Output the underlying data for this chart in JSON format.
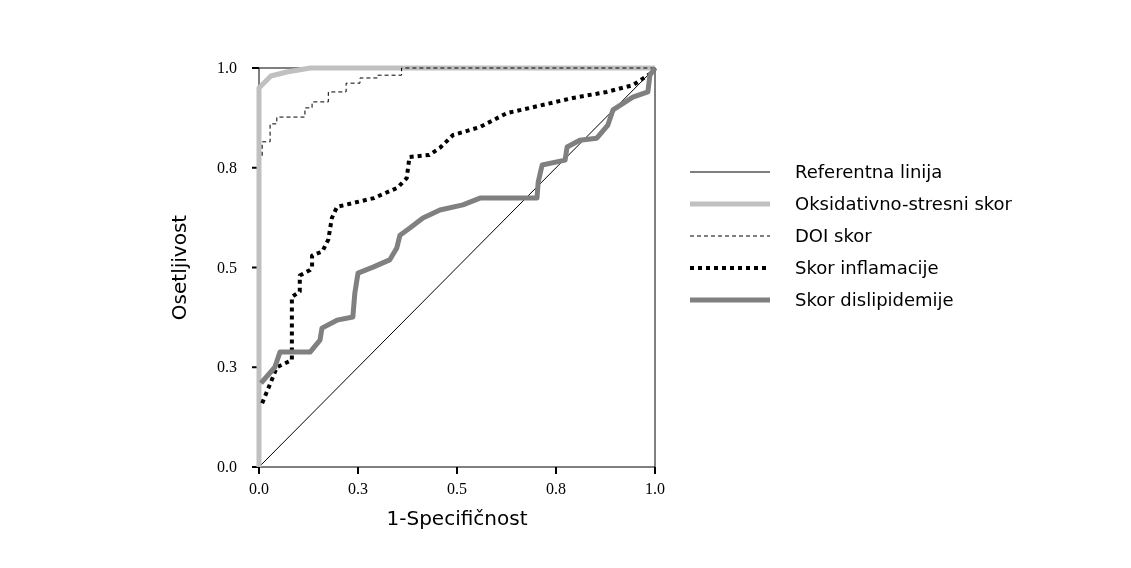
{
  "chart_data": {
    "type": "line",
    "xlabel": "1-Specifičnost",
    "ylabel": "Osetljivost",
    "xlim": [
      0,
      1
    ],
    "ylim": [
      0,
      1
    ],
    "xticks": [
      {
        "value": 0,
        "label": "0.0"
      },
      {
        "value": 0.25,
        "label": "0.3"
      },
      {
        "value": 0.5,
        "label": "0.5"
      },
      {
        "value": 0.75,
        "label": "0.8"
      },
      {
        "value": 1,
        "label": "1.0"
      }
    ],
    "yticks": [
      {
        "value": 0,
        "label": "0.0"
      },
      {
        "value": 0.25,
        "label": "0.3"
      },
      {
        "value": 0.5,
        "label": "0.5"
      },
      {
        "value": 0.75,
        "label": "0.8"
      },
      {
        "value": 1,
        "label": "1.0"
      }
    ],
    "grid": false,
    "legend": "right",
    "series": [
      {
        "name": "Referentna linija",
        "color": "#000000",
        "line_style": "solid",
        "x": [
          0,
          1
        ],
        "values": [
          0,
          1
        ]
      },
      {
        "name": "Oksidativno-stresni skor",
        "color": "#c0c0c0",
        "line_style": "solid",
        "x": [
          0,
          0,
          0.01,
          0.03,
          0.07,
          0.13,
          1
        ],
        "values": [
          0,
          0.95,
          0.96,
          0.98,
          0.99,
          1,
          1
        ]
      },
      {
        "name": "DOI skor",
        "color": "#000000",
        "line_style": "dashed",
        "x": [
          0.008,
          0.008,
          0.028,
          0.028,
          0.045,
          0.045,
          0.116,
          0.116,
          0.134,
          0.134,
          0.175,
          0.175,
          0.22,
          0.22,
          0.255,
          0.255,
          0.3,
          0.3,
          0.36,
          0.36,
          1
        ],
        "values": [
          0.78,
          0.815,
          0.815,
          0.86,
          0.86,
          0.877,
          0.877,
          0.9,
          0.9,
          0.915,
          0.915,
          0.94,
          0.94,
          0.962,
          0.962,
          0.975,
          0.975,
          0.982,
          0.982,
          1,
          1
        ]
      },
      {
        "name": "Skor inflamacije",
        "color": "#000000",
        "line_style": "dotted",
        "x": [
          0.008,
          0.035,
          0.045,
          0.083,
          0.083,
          0.103,
          0.103,
          0.129,
          0.134,
          0.134,
          0.16,
          0.175,
          0.184,
          0.197,
          0.29,
          0.35,
          0.373,
          0.38,
          0.43,
          0.457,
          0.49,
          0.558,
          0.626,
          0.684,
          0.793,
          0.878,
          0.944,
          0.995,
          1
        ],
        "values": [
          0.16,
          0.225,
          0.25,
          0.268,
          0.426,
          0.44,
          0.48,
          0.494,
          0.5,
          0.53,
          0.54,
          0.57,
          0.624,
          0.652,
          0.674,
          0.7,
          0.724,
          0.777,
          0.782,
          0.8,
          0.832,
          0.852,
          0.887,
          0.9,
          0.925,
          0.94,
          0.957,
          0.99,
          1
        ]
      },
      {
        "name": "Skor dislipidemije",
        "color": "#808080",
        "line_style": "solid",
        "x": [
          0.005,
          0.04,
          0.053,
          0.129,
          0.154,
          0.159,
          0.197,
          0.237,
          0.242,
          0.25,
          0.288,
          0.33,
          0.348,
          0.356,
          0.381,
          0.414,
          0.457,
          0.515,
          0.558,
          0.702,
          0.705,
          0.715,
          0.773,
          0.778,
          0.81,
          0.853,
          0.881,
          0.894,
          0.944,
          0.982,
          0.987,
          1
        ],
        "values": [
          0.21,
          0.25,
          0.288,
          0.288,
          0.318,
          0.348,
          0.368,
          0.376,
          0.436,
          0.486,
          0.501,
          0.519,
          0.549,
          0.581,
          0.599,
          0.624,
          0.644,
          0.657,
          0.674,
          0.674,
          0.714,
          0.757,
          0.769,
          0.802,
          0.819,
          0.824,
          0.857,
          0.895,
          0.927,
          0.94,
          0.982,
          1
        ]
      }
    ]
  }
}
